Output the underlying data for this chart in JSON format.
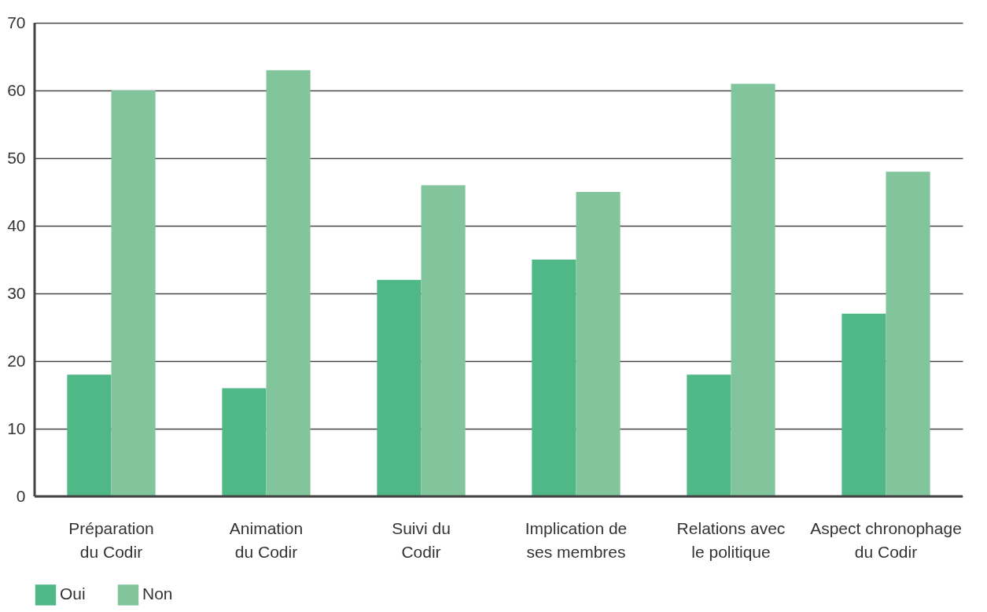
{
  "chart_data": {
    "type": "bar",
    "categories": [
      "Préparation du Codir",
      "Animation du Codir",
      "Suivi du Codir",
      "Implication de ses membres",
      "Relations avec le politique",
      "Aspect chronophage du Codir"
    ],
    "series": [
      {
        "name": "Oui",
        "color": "#50b887",
        "values": [
          18,
          16,
          32,
          35,
          18,
          27
        ]
      },
      {
        "name": "Non",
        "color": "#82c59d",
        "values": [
          60,
          63,
          46,
          45,
          61,
          48
        ]
      }
    ],
    "ylim": [
      0,
      70
    ],
    "yticks": [
      0,
      10,
      20,
      30,
      40,
      50,
      60,
      70
    ],
    "grid": "y",
    "legend": "bottom left"
  }
}
